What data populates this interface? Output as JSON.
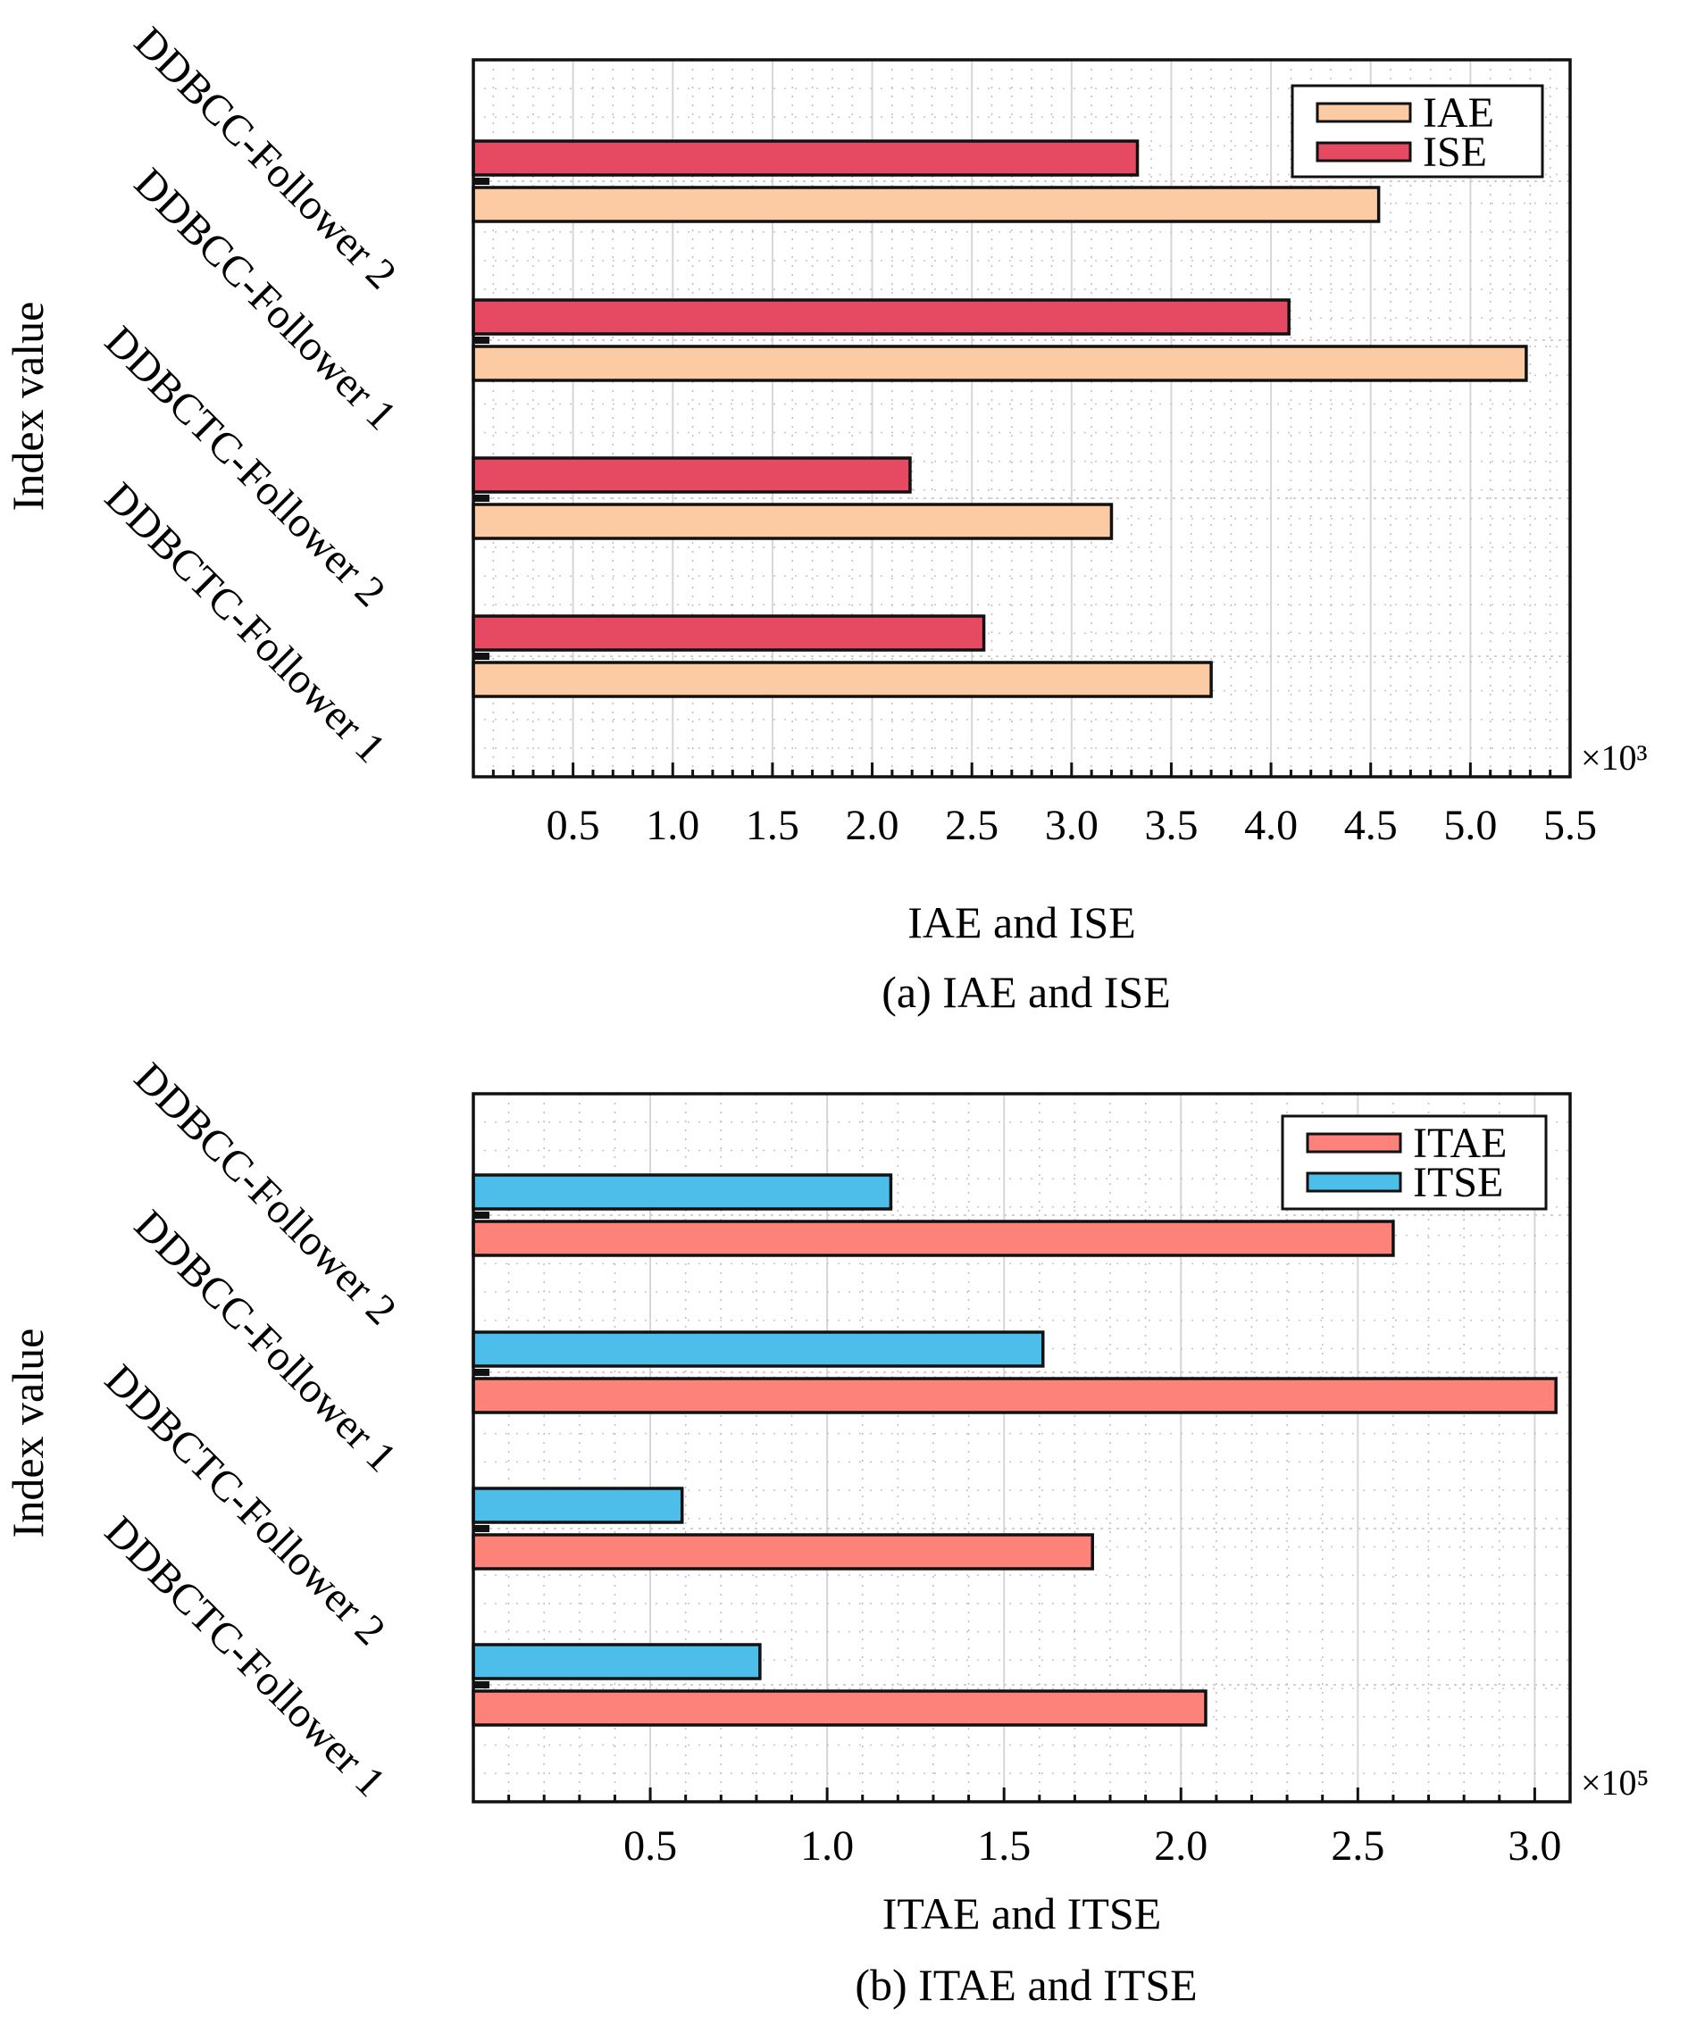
{
  "charts": [
    {
      "caption": "(a) IAE and ISE",
      "multiplier": "×10³",
      "chart_data": {
        "type": "bar",
        "orientation": "horizontal",
        "categories": [
          "DDBCC-Follower 2",
          "DDBCC-Follower 1",
          "DDBCTC-Follower 2",
          "DDBCTC-Follower 1"
        ],
        "series": [
          {
            "name": "IAE",
            "values": [
              4.54,
              5.28,
              3.2,
              3.7
            ],
            "color": "#fccba3"
          },
          {
            "name": "ISE",
            "values": [
              3.33,
              4.09,
              2.19,
              2.56
            ],
            "color": "#e64a62"
          }
        ],
        "xlabel": "IAE and ISE",
        "ylabel": "Index value",
        "xticks": [
          "0.5",
          "1.0",
          "1.5",
          "2.0",
          "2.5",
          "3.0",
          "3.5",
          "4.0",
          "4.5",
          "5.0",
          "5.5"
        ],
        "xlim": [
          0,
          5.5
        ],
        "grid": true,
        "legend": "top-right"
      }
    },
    {
      "caption": "(b) ITAE and ITSE",
      "multiplier": "×10⁵",
      "chart_data": {
        "type": "bar",
        "orientation": "horizontal",
        "categories": [
          "DDBCC-Follower 2",
          "DDBCC-Follower 1",
          "DDBCTC-Follower 2",
          "DDBCTC-Follower 1"
        ],
        "series": [
          {
            "name": "ITAE",
            "values": [
              2.6,
              3.06,
              1.75,
              2.07
            ],
            "color": "#fc827a"
          },
          {
            "name": "ITSE",
            "values": [
              1.18,
              1.61,
              0.59,
              0.81
            ],
            "color": "#4dbdea"
          }
        ],
        "xlabel": "ITAE and ITSE",
        "ylabel": "Index value",
        "xticks": [
          "0.5",
          "1.0",
          "1.5",
          "2.0",
          "2.5",
          "3.0"
        ],
        "xlim": [
          0,
          3.1
        ],
        "grid": true,
        "legend": "top-right"
      }
    }
  ]
}
